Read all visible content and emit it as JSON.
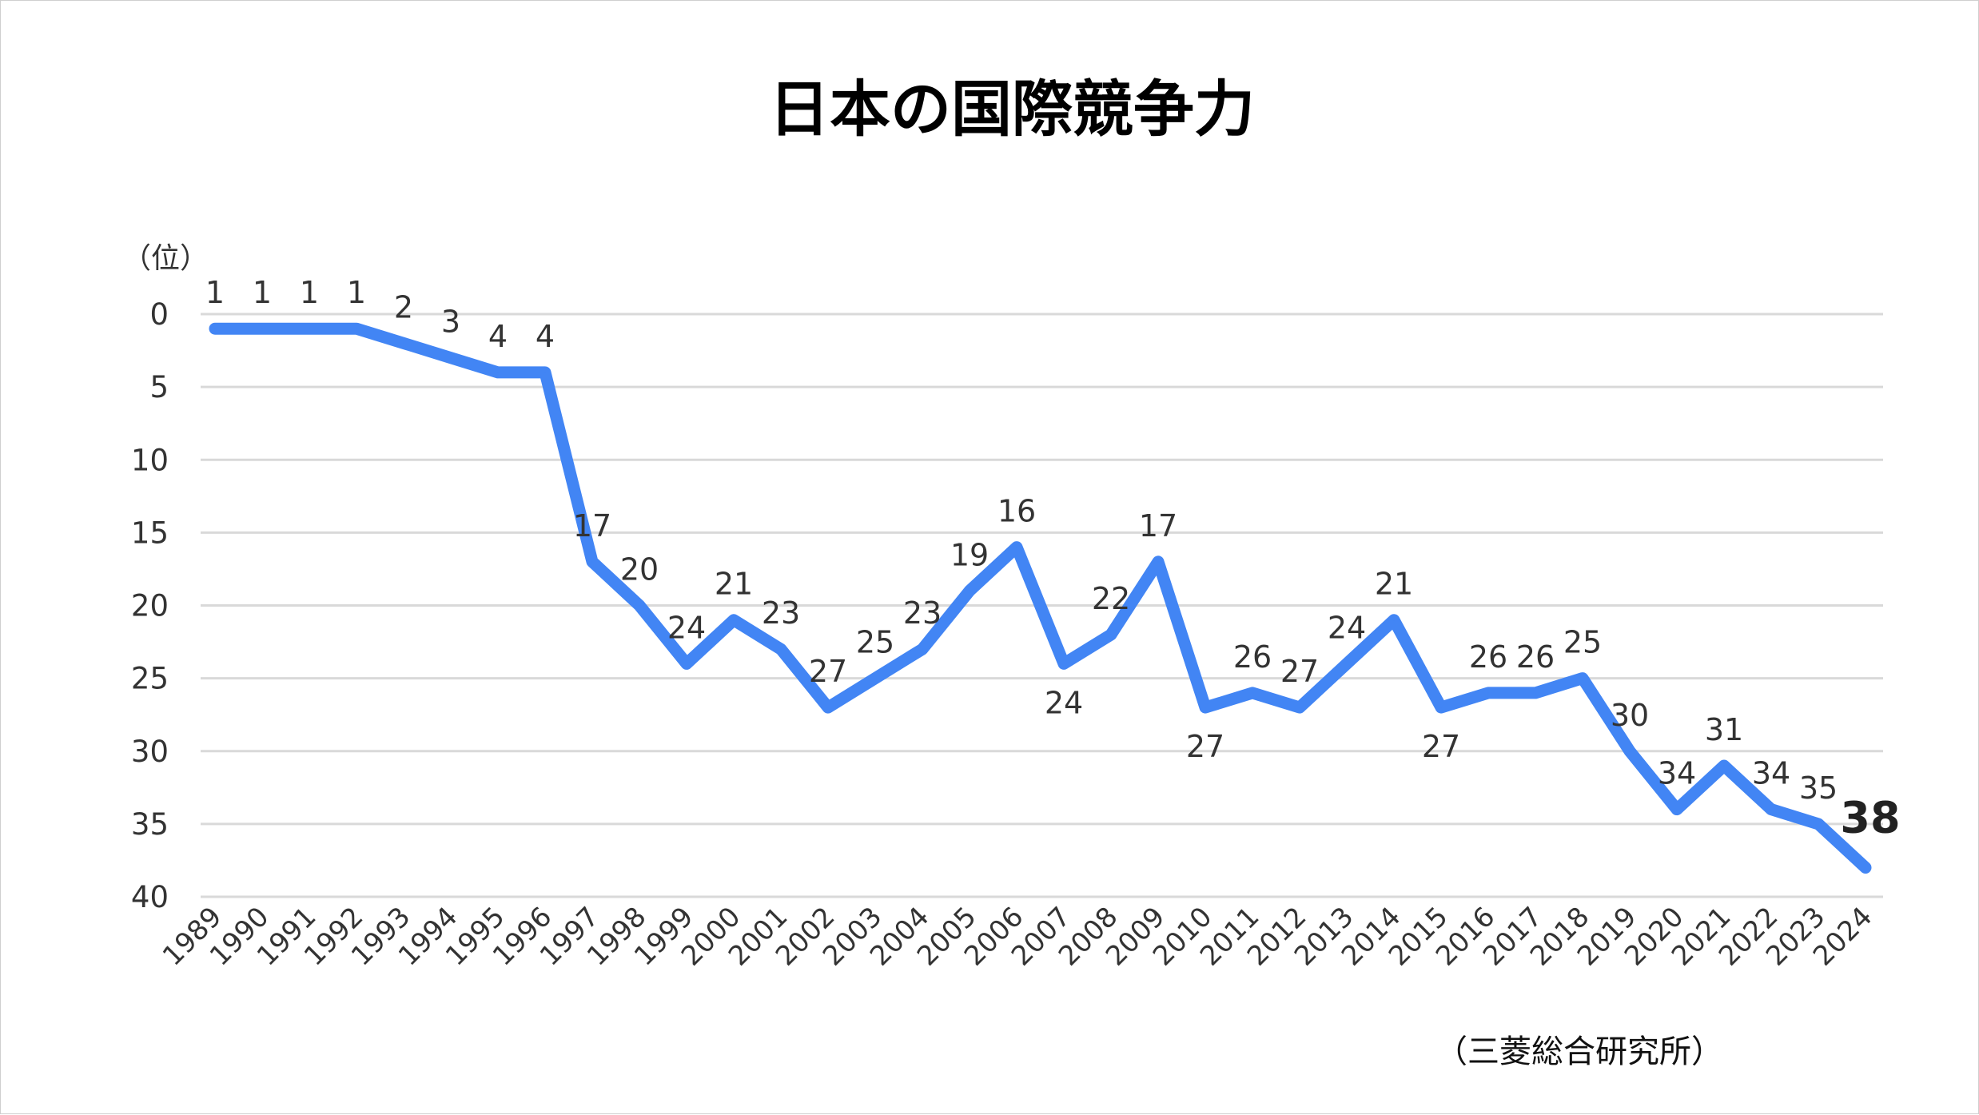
{
  "chart_data": {
    "type": "line",
    "title": "日本の国際競争力",
    "ylabel": "（位）",
    "source": "（三菱総合研究所）",
    "ylim": [
      0,
      40
    ],
    "y_inverted": true,
    "y_ticks": [
      "0",
      "5",
      "10",
      "15",
      "20",
      "25",
      "30",
      "35",
      "40"
    ],
    "grid": true,
    "categories": [
      "1989",
      "1990",
      "1991",
      "1992",
      "1993",
      "1994",
      "1995",
      "1996",
      "1997",
      "1998",
      "1999",
      "2000",
      "2001",
      "2002",
      "2003",
      "2004",
      "2005",
      "2006",
      "2007",
      "2008",
      "2009",
      "2010",
      "2011",
      "2012",
      "2013",
      "2014",
      "2015",
      "2016",
      "2017",
      "2018",
      "2019",
      "2020",
      "2021",
      "2022",
      "2023",
      "2024"
    ],
    "series": [
      {
        "color": "#4285f4",
        "values": [
          1,
          1,
          1,
          1,
          2,
          3,
          4,
          4,
          17,
          20,
          24,
          21,
          23,
          27,
          25,
          23,
          19,
          16,
          24,
          22,
          17,
          27,
          26,
          27,
          24,
          21,
          27,
          26,
          26,
          25,
          30,
          34,
          31,
          34,
          35,
          38
        ]
      }
    ],
    "data_labels": [
      "1",
      "1",
      "1",
      "1",
      "2",
      "3",
      "4",
      "4",
      "17",
      "20",
      "24",
      "21",
      "23",
      "27",
      "25",
      "23",
      "19",
      "16",
      "24",
      "22",
      "17",
      "27",
      "26",
      "27",
      "24",
      "21",
      "27",
      "26",
      "26",
      "25",
      "30",
      "34",
      "31",
      "34",
      "35",
      "38"
    ]
  },
  "colors": {
    "line": "#4285f4",
    "grid": "#d9d9d9",
    "text": "#333333"
  }
}
